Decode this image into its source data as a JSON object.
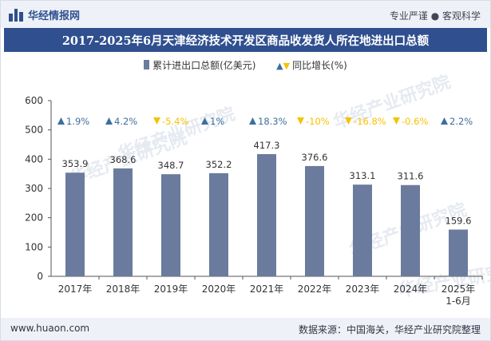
{
  "header": {
    "brand": "华经情报网",
    "tagline": "专业严谨 ● 客观科学"
  },
  "footer": {
    "site": "www.huaon.com",
    "source": "数据来源：中国海关，华经产业研究院整理"
  },
  "watermark": "华经产业研究院",
  "colors": {
    "bar": "#6b7b9d",
    "up": "#3d6f9c",
    "down": "#f5c300",
    "title_bg": "#2f4f8f"
  },
  "chart_data": {
    "type": "bar",
    "title": "2017-2025年6月天津经济技术开发区商品收发货人所在地进出口总额",
    "categories": [
      "2017年",
      "2018年",
      "2019年",
      "2020年",
      "2021年",
      "2022年",
      "2023年",
      "2024年",
      "2025年\n1-6月"
    ],
    "series": [
      {
        "name": "累计进出口总额(亿美元)",
        "values": [
          353.9,
          368.6,
          348.7,
          352.2,
          417.3,
          376.6,
          313.1,
          311.6,
          159.6
        ]
      },
      {
        "name": "同比增长(%)",
        "values": [
          1.9,
          4.2,
          -5.4,
          1,
          18.3,
          -10,
          -16.8,
          -0.6,
          2.2
        ]
      }
    ],
    "value_labels": [
      "353.9",
      "368.6",
      "348.7",
      "352.2",
      "417.3",
      "376.6",
      "313.1",
      "311.6",
      "159.6"
    ],
    "growth_labels": [
      "1.9%",
      "4.2%",
      "-5.4%",
      "1%",
      "18.3%",
      "-10%",
      "-16.8%",
      "-0.6%",
      "2.2%"
    ],
    "yticks": [
      "0",
      "100",
      "200",
      "300",
      "400",
      "500",
      "600"
    ],
    "ylim": [
      0,
      600
    ],
    "legend_position": "top-center",
    "grid": false
  }
}
